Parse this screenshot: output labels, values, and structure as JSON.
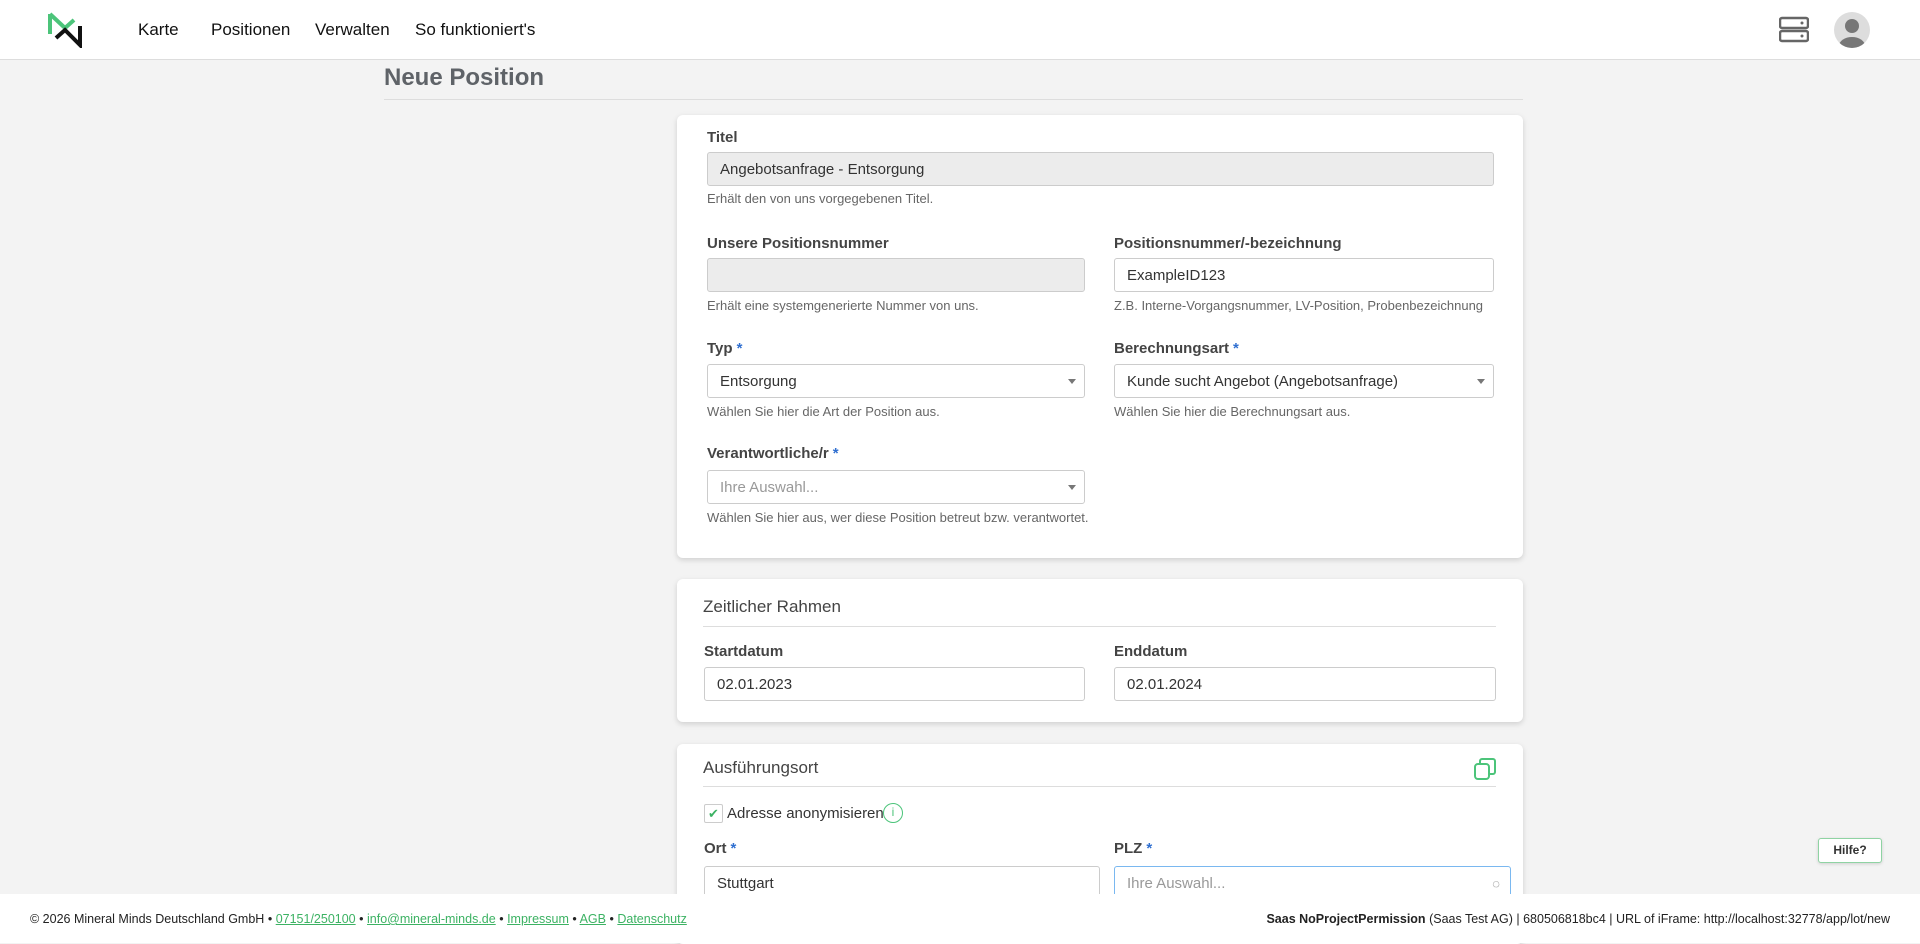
{
  "header": {
    "nav": [
      "Karte",
      "Positionen",
      "Verwalten",
      "So funktioniert's"
    ]
  },
  "page": {
    "title": "Neue Position"
  },
  "form": {
    "titel": {
      "label": "Titel",
      "value": "Angebotsanfrage - Entsorgung",
      "help": "Erhält den von uns vorgegebenen Titel."
    },
    "unsere_nr": {
      "label": "Unsere Positionsnummer",
      "value": "",
      "help": "Erhält eine systemgenerierte Nummer von uns."
    },
    "pos_nr": {
      "label": "Positionsnummer/-bezeichnung",
      "value": "ExampleID123",
      "help": "Z.B. Interne-Vorgangsnummer, LV-Position, Probenbezeichnung"
    },
    "typ": {
      "label": "Typ",
      "value": "Entsorgung",
      "help": "Wählen Sie hier die Art der Position aus."
    },
    "berechnung": {
      "label": "Berechnungsart",
      "value": "Kunde sucht Angebot (Angebotsanfrage)",
      "help": "Wählen Sie hier die Berechnungsart aus."
    },
    "verantwortlich": {
      "label": "Verantwortliche/r",
      "placeholder": "Ihre Auswahl...",
      "help": "Wählen Sie hier aus, wer diese Position betreut bzw. verantwortet."
    },
    "required_mark": "*"
  },
  "zeit": {
    "title": "Zeitlicher Rahmen",
    "start_label": "Startdatum",
    "start": "02.01.2023",
    "end_label": "Enddatum",
    "end": "02.01.2024"
  },
  "ort": {
    "title": "Ausführungsort",
    "anon_label": "Adresse anonymisieren",
    "anon_checked": true,
    "ort_label": "Ort",
    "ort": "Stuttgart",
    "plz_label": "PLZ",
    "plz_placeholder": "Ihre Auswahl..."
  },
  "help_bubble": "Hilfe?",
  "footer": {
    "copyright": "© 2026 Mineral Minds Deutschland GmbH",
    "phone": "07151/250100",
    "email": "info@mineral-minds.de",
    "impressum": "Impressum",
    "agb": "AGB",
    "datenschutz": "Datenschutz",
    "sep": "•",
    "account": "Saas NoProjectPermission",
    "info": "(Saas Test AG) | 680506818bc4 | URL of iFrame: http://localhost:32778/app/lot/new"
  },
  "colors": {
    "accent": "#3cb263",
    "required": "#2f6fd0"
  }
}
